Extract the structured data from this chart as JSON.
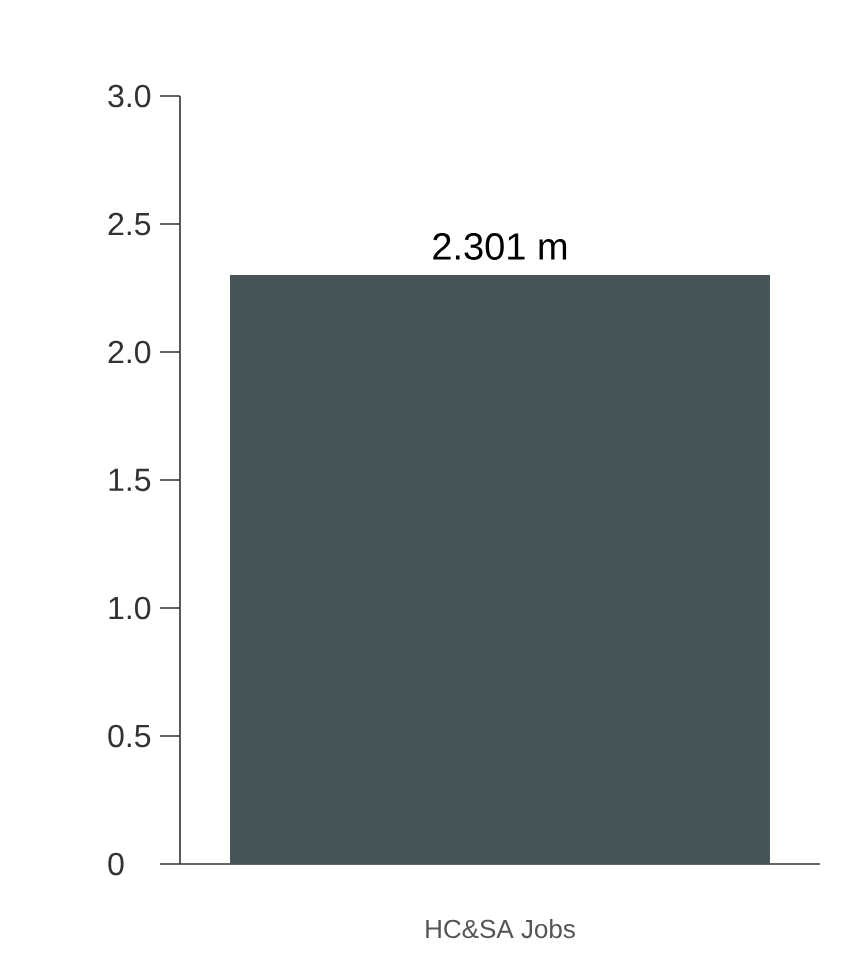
{
  "chart_data": {
    "type": "bar",
    "categories": [
      "HC&SA Jobs"
    ],
    "values": [
      2.301
    ],
    "value_labels": [
      "2.301 m"
    ],
    "color": "#465558",
    "ylim": [
      0,
      3
    ],
    "yticks": [
      0,
      0.5,
      {
        "value": 1,
        "label": "1.0"
      },
      1.5,
      {
        "value": 2,
        "label": "2.0"
      },
      2.5,
      {
        "value": 3,
        "label": "3.0"
      }
    ]
  }
}
